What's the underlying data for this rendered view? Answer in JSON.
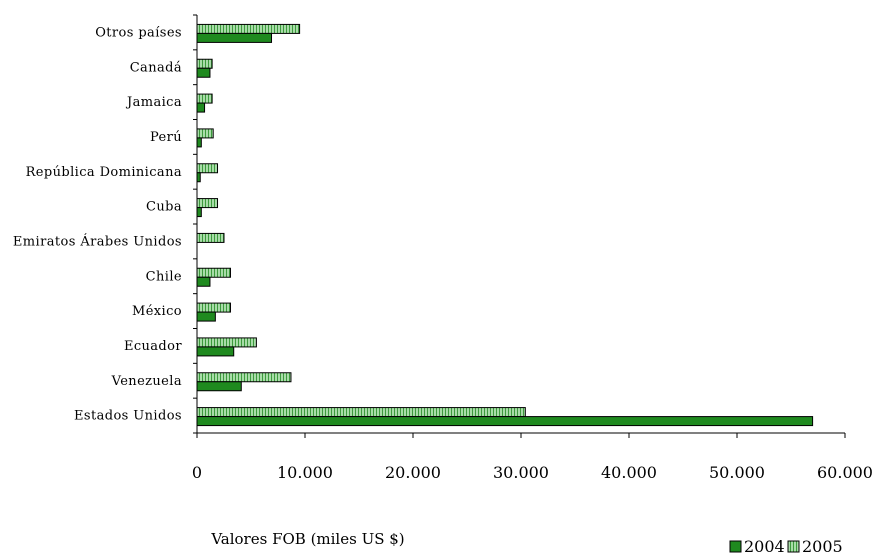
{
  "chart_data": {
    "type": "bar",
    "orientation": "horizontal",
    "title": "",
    "xlabel": "Valores FOB (miles US $)",
    "ylabel": "",
    "categories": [
      "Estados Unidos",
      "Venezuela",
      "Ecuador",
      "México",
      "Chile",
      "Emiratos Árabes Unidos",
      "Cuba",
      "República Dominicana",
      "Perú",
      "Jamaica",
      "Canadá",
      "Otros países"
    ],
    "series": [
      {
        "name": "2004",
        "values": [
          57000,
          4100,
          3400,
          1700,
          1200,
          0,
          400,
          300,
          400,
          700,
          1200,
          6900
        ]
      },
      {
        "name": "2005",
        "values": [
          30400,
          8700,
          5500,
          3100,
          3100,
          2500,
          1900,
          1900,
          1500,
          1400,
          1400,
          9500
        ]
      }
    ],
    "xlim": [
      0,
      60000
    ],
    "xticks": [
      "0",
      "10.000",
      "20.000",
      "30.000",
      "40.000",
      "50.000",
      "60.000"
    ],
    "legend_position": "bottom-right",
    "colors": {
      "2004": "#1f8a1f",
      "2005": "#8fd48f"
    },
    "grid": false
  }
}
